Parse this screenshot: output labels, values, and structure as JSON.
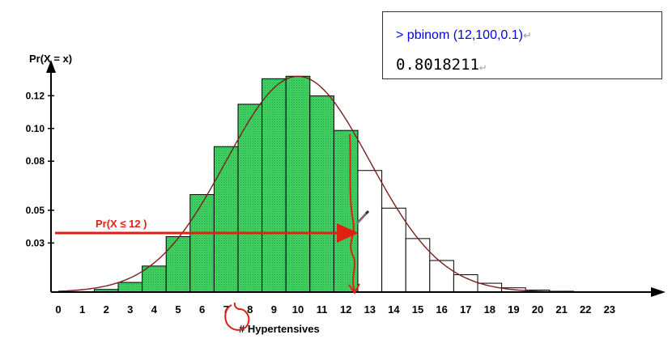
{
  "chart_data": {
    "type": "bar",
    "ylabel": "Pr(X = x)",
    "xlabel": "# Hypertensives",
    "x_tick_labels": [
      "0",
      "1",
      "2",
      "3",
      "4",
      "5",
      "6",
      "7",
      "8",
      "9",
      "10",
      "11",
      "12",
      "13",
      "14",
      "15",
      "16",
      "17",
      "18",
      "19",
      "20",
      "21",
      "22",
      "23"
    ],
    "y_ticks": [
      0.03,
      0.05,
      0.08,
      0.1,
      0.12
    ],
    "y_tick_labels": [
      "0.03",
      "0.05",
      "0.08",
      "0.10",
      "0.12"
    ],
    "ylim": [
      0,
      0.135
    ],
    "bars": [
      {
        "x": 0,
        "value": 3e-05
      },
      {
        "x": 1,
        "value": 0.0003
      },
      {
        "x": 2,
        "value": 0.0016
      },
      {
        "x": 3,
        "value": 0.0059
      },
      {
        "x": 4,
        "value": 0.0159
      },
      {
        "x": 5,
        "value": 0.0339
      },
      {
        "x": 6,
        "value": 0.0596
      },
      {
        "x": 7,
        "value": 0.0889
      },
      {
        "x": 8,
        "value": 0.1148
      },
      {
        "x": 9,
        "value": 0.1304
      },
      {
        "x": 10,
        "value": 0.1319
      },
      {
        "x": 11,
        "value": 0.1199
      },
      {
        "x": 12,
        "value": 0.0988
      },
      {
        "x": 13,
        "value": 0.0743
      },
      {
        "x": 14,
        "value": 0.0513
      },
      {
        "x": 15,
        "value": 0.0327
      },
      {
        "x": 16,
        "value": 0.0193
      },
      {
        "x": 17,
        "value": 0.0106
      },
      {
        "x": 18,
        "value": 0.0054
      },
      {
        "x": 19,
        "value": 0.0026
      },
      {
        "x": 20,
        "value": 0.0012
      },
      {
        "x": 21,
        "value": 0.0005
      },
      {
        "x": 22,
        "value": 0.0002
      },
      {
        "x": 23,
        "value": 0.0001
      }
    ],
    "shaded_through": 12,
    "annotation": "Pr(X ≤ 12 )",
    "colors": {
      "shaded": "#33cc55",
      "unshaded": "#ffffff",
      "curve": "#7a1f1f",
      "annotation": "#e02010"
    }
  },
  "r_console": {
    "command": "> pbinom (12,100,0.1)",
    "output": "0.8018211",
    "command_color": "#0000ee"
  }
}
